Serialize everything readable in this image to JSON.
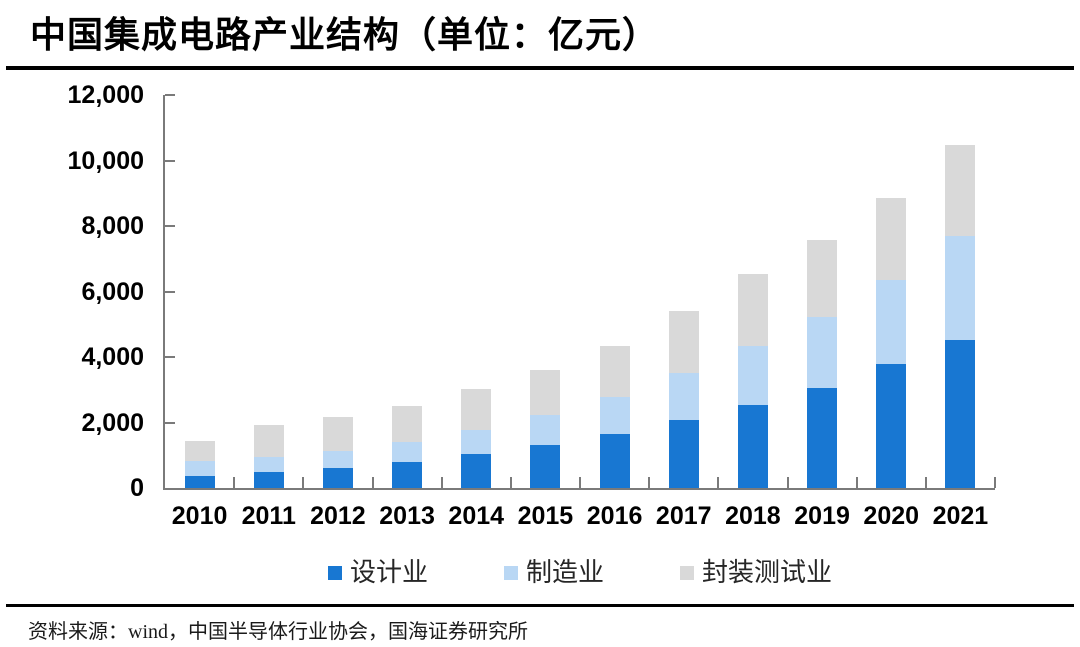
{
  "header": {
    "title": "中国集成电路产业结构（单位：亿元）"
  },
  "footer": {
    "source": "资料来源：wind，中国半导体行业协会，国海证券研究所"
  },
  "chart_data": {
    "type": "bar",
    "stacked": true,
    "title": "中国集成电路产业结构",
    "unit": "亿元",
    "categories": [
      "2010",
      "2011",
      "2012",
      "2013",
      "2014",
      "2015",
      "2016",
      "2017",
      "2018",
      "2019",
      "2020",
      "2021"
    ],
    "series": [
      {
        "name": "设计业",
        "color": "#1877D2",
        "values": [
          363.9,
          473.7,
          621.7,
          808.8,
          1047.4,
          1325.0,
          1644.3,
          2073.5,
          2519.3,
          3063.5,
          3778.4,
          4519.0
        ]
      },
      {
        "name": "制造业",
        "color": "#B9D7F4",
        "values": [
          447.1,
          473.1,
          501.1,
          600.9,
          712.1,
          900.8,
          1126.9,
          1448.1,
          1818.2,
          2149.1,
          2560.1,
          3176.3
        ]
      },
      {
        "name": "封装测试业",
        "color": "#D9D9D9",
        "values": [
          629.2,
          986.9,
          1035.7,
          1098.8,
          1255.9,
          1384.0,
          1564.3,
          1889.7,
          2193.9,
          2349.7,
          2509.5,
          2763.0
        ]
      }
    ],
    "totals": [
      1440.2,
      1933.7,
      2158.5,
      2508.5,
      3015.4,
      3609.8,
      4335.5,
      5411.3,
      6531.4,
      7562.3,
      8848.0,
      10458.3
    ],
    "ylim": [
      0,
      12000
    ],
    "ytick_step": 2000,
    "ytick_labels": [
      "0",
      "2,000",
      "4,000",
      "6,000",
      "8,000",
      "10,000",
      "12,000"
    ],
    "legend_position": "bottom",
    "grid": false,
    "axis_color": "#7a7a7a"
  }
}
